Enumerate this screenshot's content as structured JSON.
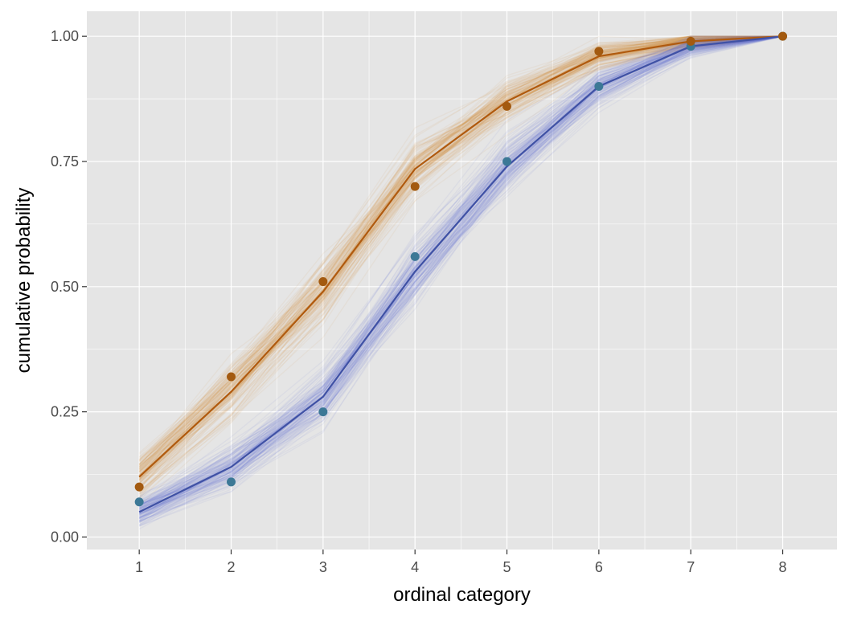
{
  "chart_data": {
    "type": "line",
    "title": "",
    "xlabel": "ordinal category",
    "ylabel": "cumulative probability",
    "x": [
      1,
      2,
      3,
      4,
      5,
      6,
      7,
      8
    ],
    "xlim": [
      0.43,
      8.59
    ],
    "ylim": [
      -0.025,
      1.05
    ],
    "x_ticks": [
      "1",
      "2",
      "3",
      "4",
      "5",
      "6",
      "7",
      "8"
    ],
    "y_ticks": [
      "0.00",
      "0.25",
      "0.50",
      "0.75",
      "1.00"
    ],
    "y_tick_values": [
      0,
      0.25,
      0.5,
      0.75,
      1.0
    ],
    "grid": true,
    "background": "#e5e5e5",
    "gridline_color": "#ffffff",
    "series": [
      {
        "line_color": "#b05a0e",
        "band_color": "#d98a3e",
        "point_color": "#a35a10",
        "fitted": [
          0.12,
          0.29,
          0.49,
          0.735,
          0.87,
          0.96,
          0.99,
          1.0
        ],
        "observed": [
          0.1,
          0.32,
          0.51,
          0.7,
          0.86,
          0.97,
          0.99,
          1.0
        ]
      },
      {
        "line_color": "#3f51a5",
        "band_color": "#6a6fd0",
        "point_color": "#3c7896",
        "fitted": [
          0.05,
          0.14,
          0.28,
          0.53,
          0.74,
          0.9,
          0.98,
          1.0
        ],
        "observed": [
          0.07,
          0.11,
          0.25,
          0.56,
          0.75,
          0.9,
          0.98,
          1.0
        ]
      }
    ]
  }
}
